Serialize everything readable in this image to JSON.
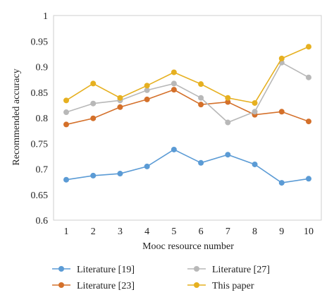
{
  "chart_data": {
    "type": "line",
    "title": "",
    "xlabel": "Mooc resource number",
    "ylabel": "Recommended accuracy",
    "x": [
      1,
      2,
      3,
      4,
      5,
      6,
      7,
      8,
      9,
      10
    ],
    "ylim": [
      0.6,
      1.0
    ],
    "yticks": [
      0.6,
      0.65,
      0.7,
      0.75,
      0.8,
      0.85,
      0.9,
      0.95,
      1
    ],
    "ytick_labels": [
      "0.6",
      "0.65",
      "0.7",
      "0.75",
      "0.8",
      "0.85",
      "0.9",
      "0.95",
      "1"
    ],
    "xtick_labels": [
      "1",
      "2",
      "3",
      "4",
      "5",
      "6",
      "7",
      "8",
      "9",
      "10"
    ],
    "grid": false,
    "legend_position": "bottom",
    "series": [
      {
        "name": "Literature [19]",
        "color": "#5b9bd5",
        "values": [
          0.679,
          0.687,
          0.691,
          0.705,
          0.738,
          0.712,
          0.728,
          0.709,
          0.673,
          0.681
        ]
      },
      {
        "name": "Literature [23]",
        "color": "#d4702a",
        "values": [
          0.787,
          0.799,
          0.821,
          0.836,
          0.855,
          0.826,
          0.831,
          0.806,
          0.812,
          0.793
        ]
      },
      {
        "name": "Literature [27]",
        "color": "#b8b8b8",
        "values": [
          0.811,
          0.828,
          0.834,
          0.854,
          0.867,
          0.839,
          0.791,
          0.812,
          0.908,
          0.879
        ]
      },
      {
        "name": "This paper",
        "color": "#e6b020",
        "values": [
          0.834,
          0.867,
          0.839,
          0.863,
          0.889,
          0.866,
          0.839,
          0.829,
          0.916,
          0.939
        ]
      }
    ]
  }
}
